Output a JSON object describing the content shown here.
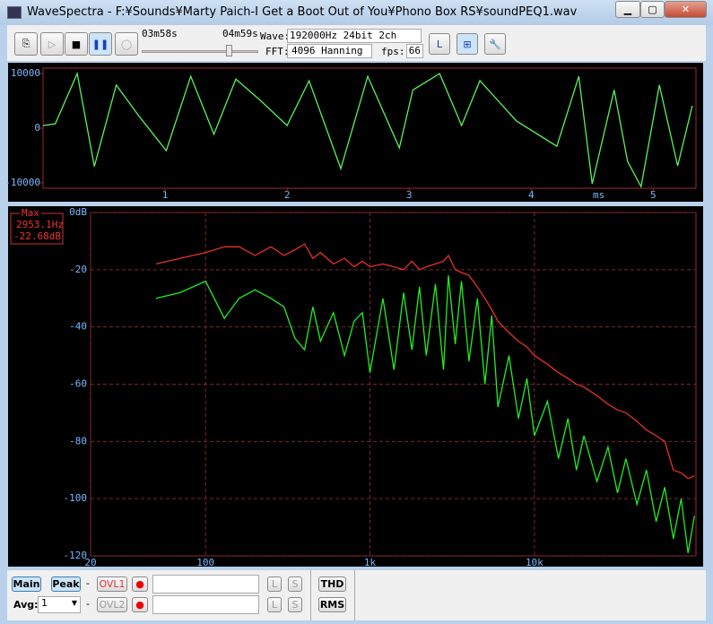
{
  "window": {
    "title": "WaveSpectra - F:¥Sounds¥Marty Paich-I Get a Boot Out of You¥Phono Box RS¥soundPEQ1.wav",
    "toolbar": {
      "position": "03m58s",
      "length": "04m59s",
      "wave_label": "Wave:",
      "wave_value": "192000Hz 24bit 2ch",
      "fft_label": "FFT:",
      "fft_value": "4096 Hanning",
      "fps_label": "fps:",
      "fps_value": "66"
    },
    "controls": {
      "row1": {
        "main": "Main",
        "peak": "Peak",
        "dash": "-",
        "ovl": "OVL1",
        "l": "L",
        "s": "S",
        "thd": "THD"
      },
      "row2": {
        "avg_label": "Avg:",
        "avg_value": "1",
        "dash": "-",
        "ovl": "OVL2",
        "l": "L",
        "s": "S",
        "rms": "RMS"
      }
    }
  },
  "chart_data": [
    {
      "type": "line",
      "x_unit_label": "ms",
      "x": [
        0,
        0.1,
        0.28,
        0.42,
        0.6,
        0.79,
        1.01,
        1.21,
        1.4,
        1.58,
        1.78,
        2.0,
        2.18,
        2.44,
        2.66,
        2.92,
        3.03,
        3.25,
        3.43,
        3.58,
        3.88,
        4.21,
        4.39,
        4.5,
        4.68,
        4.79,
        4.9,
        5.05,
        5.2,
        5.32
      ],
      "series": [
        {
          "color": "#5af25a",
          "values": [
            500,
            800,
            10000,
            -7000,
            7900,
            2100,
            -4100,
            9500,
            -1100,
            9000,
            5100,
            500,
            8700,
            -7400,
            9500,
            -3600,
            7000,
            10000,
            500,
            8700,
            1300,
            -3300,
            9500,
            -10200,
            7000,
            -6100,
            -10700,
            7900,
            -6900,
            4100
          ]
        }
      ],
      "xlim": [
        0,
        5.35
      ],
      "xticks": [
        1,
        2,
        3,
        4,
        5
      ],
      "ylim": [
        -11000,
        11000
      ],
      "yticks": [
        10000,
        0,
        -10000
      ]
    },
    {
      "type": "line",
      "log_x": true,
      "grid": true,
      "legend": {
        "title": "Max",
        "frequency": "2953.1Hz",
        "level": "-22.68dB"
      },
      "x": [
        50,
        70,
        100,
        130,
        160,
        200,
        250,
        300,
        350,
        400,
        450,
        500,
        600,
        700,
        800,
        900,
        1000,
        1200,
        1400,
        1600,
        1800,
        2000,
        2200,
        2500,
        2800,
        3000,
        3300,
        3600,
        4000,
        4500,
        5000,
        5500,
        6000,
        7000,
        8000,
        9000,
        10000,
        12000,
        14000,
        16000,
        18000,
        20000,
        24000,
        28000,
        32000,
        36000,
        42000,
        48000,
        55000,
        62000,
        70000,
        78000,
        86000,
        94000
      ],
      "series": [
        {
          "color": "#e8302a",
          "values": [
            -18,
            -16,
            -14,
            -12,
            -12,
            -15,
            -12,
            -15,
            -13,
            -11,
            -16,
            -14,
            -18,
            -16,
            -19,
            -17,
            -19,
            -18,
            -19,
            -20,
            -17,
            -20,
            -19,
            -18,
            -17,
            -15,
            -20,
            -21,
            -22,
            -26,
            -30,
            -34,
            -38,
            -42,
            -45,
            -47,
            -50,
            -53,
            -56,
            -58,
            -60,
            -61,
            -64,
            -67,
            -69,
            -70,
            -73,
            -76,
            -78,
            -80,
            -90,
            -91,
            -93,
            -92
          ]
        },
        {
          "color": "#22ee22",
          "values": [
            -30,
            -28,
            -24,
            -37,
            -30,
            -27,
            -30,
            -33,
            -44,
            -48,
            -33,
            -45,
            -35,
            -50,
            -38,
            -35,
            -56,
            -30,
            -55,
            -28,
            -48,
            -26,
            -50,
            -25,
            -55,
            -22,
            -46,
            -24,
            -52,
            -30,
            -60,
            -36,
            -68,
            -50,
            -72,
            -58,
            -78,
            -66,
            -86,
            -72,
            -90,
            -78,
            -94,
            -82,
            -98,
            -86,
            -102,
            -90,
            -108,
            -96,
            -114,
            -100,
            -119,
            -106
          ]
        }
      ],
      "xlim": [
        20,
        96000
      ],
      "xticks": [
        20,
        100,
        {
          "value": 1000,
          "label": "1k"
        },
        {
          "value": 10000,
          "label": "10k"
        }
      ],
      "ylim": [
        -120,
        0
      ],
      "yticks": [
        {
          "value": 0,
          "label": "0dB"
        },
        -20,
        -40,
        -60,
        -80,
        -100,
        -120
      ]
    }
  ]
}
